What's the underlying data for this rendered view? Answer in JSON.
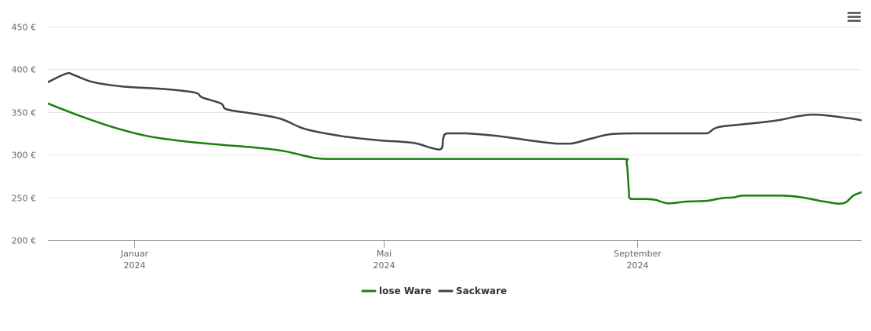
{
  "ui": {
    "menu_icon": "hamburger-menu-icon"
  },
  "chart_data": {
    "type": "line",
    "title": "",
    "xlabel": "",
    "ylabel": "",
    "y_unit_suffix": " €",
    "ylim": [
      200,
      450
    ],
    "yticks": [
      200,
      250,
      300,
      350,
      400,
      450
    ],
    "ytick_labels": [
      "200 €",
      "250 €",
      "300 €",
      "350 €",
      "400 €",
      "450 €"
    ],
    "xlim": [
      "2023-11-20",
      "2024-12-19"
    ],
    "xticks": [
      {
        "date": "2024-01-01",
        "month": "Januar",
        "year": "2024"
      },
      {
        "date": "2024-05-01",
        "month": "Mai",
        "year": "2024"
      },
      {
        "date": "2024-09-01",
        "month": "September",
        "year": "2024"
      }
    ],
    "grid": true,
    "legend_position": "bottom-center",
    "series": [
      {
        "name": "lose Ware",
        "color": "#1a7f0d",
        "points": [
          [
            "2023-11-20",
            360
          ],
          [
            "2023-12-06",
            345
          ],
          [
            "2023-12-22",
            332
          ],
          [
            "2024-01-07",
            322
          ],
          [
            "2024-01-24",
            316
          ],
          [
            "2024-02-10",
            312
          ],
          [
            "2024-03-01",
            308
          ],
          [
            "2024-03-14",
            304
          ],
          [
            "2024-03-29",
            296
          ],
          [
            "2024-04-08",
            295
          ],
          [
            "2024-05-01",
            295
          ],
          [
            "2024-06-01",
            295
          ],
          [
            "2024-07-01",
            295
          ],
          [
            "2024-08-01",
            295
          ],
          [
            "2024-08-25",
            295
          ],
          [
            "2024-08-27",
            290
          ],
          [
            "2024-08-28",
            260
          ],
          [
            "2024-08-29",
            248
          ],
          [
            "2024-09-05",
            248
          ],
          [
            "2024-09-10",
            247
          ],
          [
            "2024-09-16",
            243
          ],
          [
            "2024-09-25",
            245
          ],
          [
            "2024-10-05",
            246
          ],
          [
            "2024-10-12",
            249
          ],
          [
            "2024-10-18",
            250
          ],
          [
            "2024-10-23",
            252
          ],
          [
            "2024-11-10",
            252
          ],
          [
            "2024-11-20",
            250
          ],
          [
            "2024-12-01",
            245
          ],
          [
            "2024-12-10",
            243
          ],
          [
            "2024-12-15",
            252
          ],
          [
            "2024-12-19",
            256
          ]
        ]
      },
      {
        "name": "Sackware",
        "color": "#434348",
        "points": [
          [
            "2023-11-20",
            385
          ],
          [
            "2023-11-29",
            395
          ],
          [
            "2023-12-03",
            393
          ],
          [
            "2023-12-12",
            385
          ],
          [
            "2023-12-26",
            380
          ],
          [
            "2024-01-15",
            377
          ],
          [
            "2024-01-30",
            373
          ],
          [
            "2024-02-03",
            367
          ],
          [
            "2024-02-12",
            360
          ],
          [
            "2024-02-15",
            353
          ],
          [
            "2024-02-28",
            348
          ],
          [
            "2024-03-12",
            342
          ],
          [
            "2024-03-24",
            330
          ],
          [
            "2024-04-10",
            322
          ],
          [
            "2024-04-28",
            317
          ],
          [
            "2024-05-15",
            314
          ],
          [
            "2024-05-24",
            308
          ],
          [
            "2024-05-29",
            307
          ],
          [
            "2024-05-30",
            320
          ],
          [
            "2024-06-01",
            325
          ],
          [
            "2024-06-10",
            325
          ],
          [
            "2024-06-25",
            322
          ],
          [
            "2024-07-10",
            317
          ],
          [
            "2024-07-24",
            313
          ],
          [
            "2024-07-31",
            313
          ],
          [
            "2024-08-10",
            319
          ],
          [
            "2024-08-19",
            324
          ],
          [
            "2024-08-31",
            325
          ],
          [
            "2024-09-15",
            325
          ],
          [
            "2024-09-30",
            325
          ],
          [
            "2024-10-05",
            325
          ],
          [
            "2024-10-10",
            332
          ],
          [
            "2024-10-20",
            335
          ],
          [
            "2024-11-01",
            338
          ],
          [
            "2024-11-10",
            341
          ],
          [
            "2024-11-18",
            345
          ],
          [
            "2024-11-25",
            347
          ],
          [
            "2024-12-02",
            346
          ],
          [
            "2024-12-15",
            342
          ],
          [
            "2024-12-20",
            340
          ],
          [
            "2024-12-28",
            340
          ],
          [
            "2024-12-31",
            338
          ],
          [
            "2025-01-04",
            334
          ]
        ]
      }
    ]
  }
}
